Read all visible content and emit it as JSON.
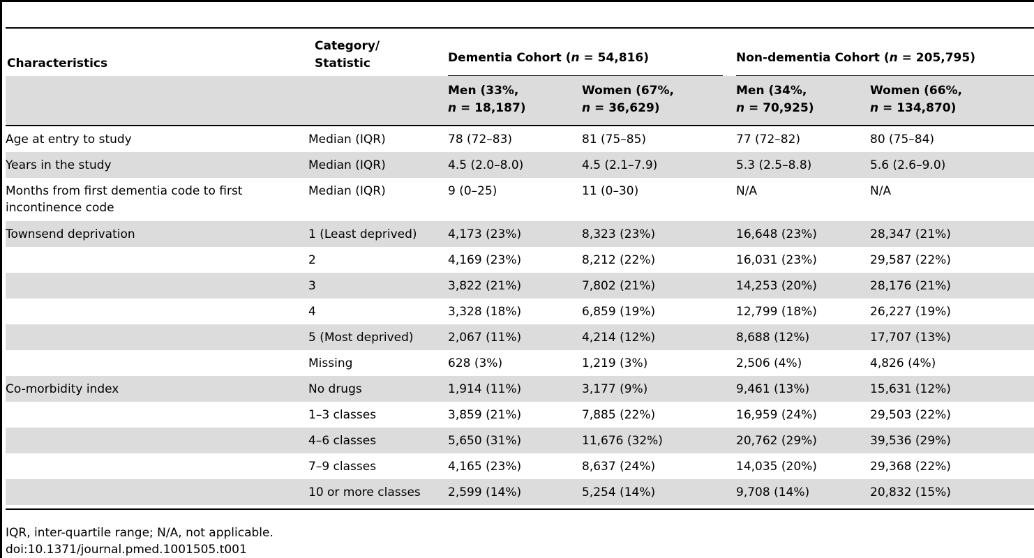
{
  "header": {
    "characteristics": "Characteristics",
    "category_line1": "Category/",
    "category_line2": "Statistic",
    "dementia_prefix": "Dementia Cohort (",
    "dementia_n_var": "n",
    "dementia_n_value": " = 54,816)",
    "nondementia_prefix": "Non-dementia Cohort (",
    "nondementia_n_var": "n",
    "nondementia_n_value": " = 205,795)",
    "sub": [
      {
        "line1": "Men (33%,",
        "n_var": "n",
        "line2": " = 18,187)"
      },
      {
        "line1": "Women (67%,",
        "n_var": "n",
        "line2": " = 36,629)"
      },
      {
        "line1": "Men (34%,",
        "n_var": "n",
        "line2": " = 70,925)"
      },
      {
        "line1": "Women (66%,",
        "n_var": "n",
        "line2": " = 134,870)"
      }
    ]
  },
  "rows": [
    {
      "c": [
        "Age at entry to study",
        "Median (IQR)",
        "78 (72–83)",
        "81 (75–85)",
        "77 (72–82)",
        "80 (75–84)"
      ]
    },
    {
      "c": [
        "Years in the study",
        "Median (IQR)",
        "4.5 (2.0–8.0)",
        "4.5 (2.1–7.9)",
        "5.3 (2.5–8.8)",
        "5.6 (2.6–9.0)"
      ]
    },
    {
      "c": [
        "Months from first dementia code to first incontinence code",
        "Median (IQR)",
        "9 (0–25)",
        "11 (0–30)",
        "N/A",
        "N/A"
      ]
    },
    {
      "c": [
        "Townsend deprivation",
        "1 (Least deprived)",
        "4,173 (23%)",
        "8,323 (23%)",
        "16,648 (23%)",
        "28,347 (21%)"
      ]
    },
    {
      "c": [
        "",
        "2",
        "4,169 (23%)",
        "8,212 (22%)",
        "16,031 (23%)",
        "29,587 (22%)"
      ]
    },
    {
      "c": [
        "",
        "3",
        "3,822 (21%)",
        "7,802 (21%)",
        "14,253 (20%)",
        "28,176 (21%)"
      ]
    },
    {
      "c": [
        "",
        "4",
        "3,328 (18%)",
        "6,859 (19%)",
        "12,799 (18%)",
        "26,227 (19%)"
      ]
    },
    {
      "c": [
        "",
        "5 (Most deprived)",
        "2,067 (11%)",
        "4,214 (12%)",
        "8,688 (12%)",
        "17,707 (13%)"
      ]
    },
    {
      "c": [
        "",
        "Missing",
        "628 (3%)",
        "1,219 (3%)",
        "2,506 (4%)",
        "4,826 (4%)"
      ]
    },
    {
      "c": [
        "Co-morbidity index",
        "No drugs",
        "1,914 (11%)",
        "3,177 (9%)",
        "9,461 (13%)",
        "15,631 (12%)"
      ]
    },
    {
      "c": [
        "",
        "1–3 classes",
        "3,859 (21%)",
        "7,885 (22%)",
        "16,959 (24%)",
        "29,503 (22%)"
      ]
    },
    {
      "c": [
        "",
        "4–6 classes",
        "5,650 (31%)",
        "11,676 (32%)",
        "20,762 (29%)",
        "39,536 (29%)"
      ]
    },
    {
      "c": [
        "",
        "7–9 classes",
        "4,165 (23%)",
        "8,637 (24%)",
        "14,035 (20%)",
        "29,368 (22%)"
      ]
    },
    {
      "c": [
        "",
        "10 or more classes",
        "2,599 (14%)",
        "5,254 (14%)",
        "9,708 (14%)",
        "20,832 (15%)"
      ]
    }
  ],
  "footer": {
    "note": "IQR, inter-quartile range; N/A, not applicable.",
    "doi": "doi:10.1371/journal.pmed.1001505.t001"
  },
  "colors": {
    "shade": "#dcdcdc",
    "rule": "#000000"
  }
}
